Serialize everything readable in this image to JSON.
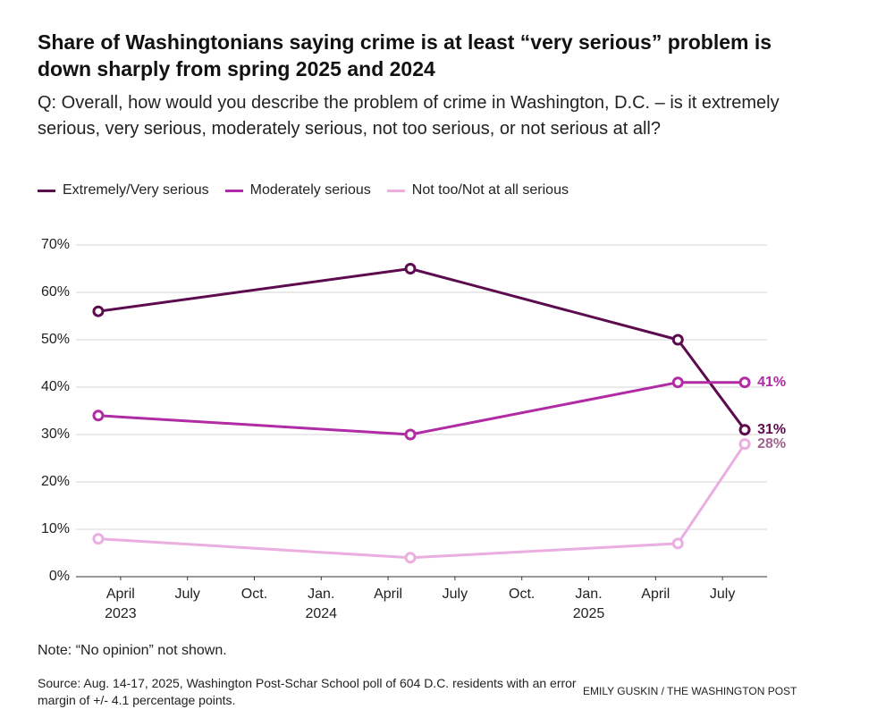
{
  "chart_data": {
    "type": "line",
    "title": "Share of Washingtonians saying crime is at least “very serious” problem is down sharply from spring 2025 and 2024",
    "subtitle": "Q: Overall, how would you describe the problem of crime in Washington, D.C. – is it extremely serious, very serious, moderately serious, not too serious, or not serious at all?",
    "x": [
      "2023-03",
      "2024-05",
      "2025-05",
      "2025-08"
    ],
    "series": [
      {
        "name": "Extremely/Very serious",
        "color": "#5c0b4e",
        "values": [
          56,
          65,
          50,
          31
        ],
        "value_labels": [
          null,
          null,
          null,
          "31%"
        ]
      },
      {
        "name": "Moderately serious",
        "color": "#b12ba4",
        "values": [
          34,
          30,
          41,
          41
        ],
        "value_labels": [
          null,
          null,
          null,
          "41%"
        ]
      },
      {
        "name": "Not too/Not at all serious",
        "color": "#eaaee0",
        "label_color": "#a0648e",
        "values": [
          8,
          4,
          7,
          28
        ],
        "value_labels": [
          null,
          null,
          null,
          "28%"
        ]
      }
    ],
    "xlim": [
      "2023-02",
      "2025-09"
    ],
    "xticks": [
      {
        "value": "2023-04",
        "label": "April 2023"
      },
      {
        "value": "2023-07",
        "label": "July"
      },
      {
        "value": "2023-10",
        "label": "Oct."
      },
      {
        "value": "2024-01",
        "label": "Jan. 2024"
      },
      {
        "value": "2024-04",
        "label": "April"
      },
      {
        "value": "2024-07",
        "label": "July"
      },
      {
        "value": "2024-10",
        "label": "Oct."
      },
      {
        "value": "2025-01",
        "label": "Jan. 2025"
      },
      {
        "value": "2025-04",
        "label": "April"
      },
      {
        "value": "2025-07",
        "label": "July"
      }
    ],
    "ylim": [
      0,
      70
    ],
    "yticks": [
      {
        "value": 0,
        "label": "0%"
      },
      {
        "value": 10,
        "label": "10%"
      },
      {
        "value": 20,
        "label": "20%"
      },
      {
        "value": 30,
        "label": "30%"
      },
      {
        "value": 40,
        "label": "40%"
      },
      {
        "value": 50,
        "label": "50%"
      },
      {
        "value": 60,
        "label": "60%"
      },
      {
        "value": 70,
        "label": "70%"
      }
    ],
    "grid": true,
    "note": "Note: “No opinion” not shown.",
    "source": "Source: Aug. 14-17, 2025, Washington Post-Schar School poll of 604 D.C. residents with an error margin of +/- 4.1 percentage points.",
    "credit": "EMILY GUSKIN / THE WASHINGTON POST"
  }
}
